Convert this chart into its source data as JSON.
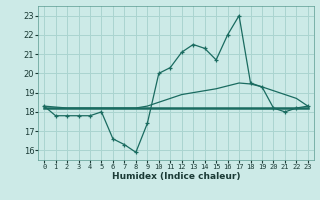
{
  "xlabel": "Humidex (Indice chaleur)",
  "background_color": "#cceae7",
  "grid_color": "#aad4d0",
  "line_color": "#1a6b60",
  "xlim": [
    -0.5,
    23.5
  ],
  "ylim": [
    15.5,
    23.5
  ],
  "yticks": [
    16,
    17,
    18,
    19,
    20,
    21,
    22,
    23
  ],
  "xtick_labels": [
    "0",
    "1",
    "2",
    "3",
    "4",
    "5",
    "6",
    "7",
    "8",
    "9",
    "10",
    "11",
    "12",
    "13",
    "14",
    "15",
    "16",
    "17",
    "18",
    "19",
    "20",
    "21",
    "22",
    "23"
  ],
  "x": [
    0,
    1,
    2,
    3,
    4,
    5,
    6,
    7,
    8,
    9,
    10,
    11,
    12,
    13,
    14,
    15,
    16,
    17,
    18,
    19,
    20,
    21,
    22,
    23
  ],
  "y_main": [
    18.3,
    17.8,
    17.8,
    17.8,
    17.8,
    18.0,
    16.6,
    16.3,
    15.9,
    17.4,
    20.0,
    20.3,
    21.1,
    21.5,
    21.3,
    20.7,
    22.0,
    23.0,
    19.5,
    19.3,
    18.2,
    18.0,
    18.2,
    18.3
  ],
  "y_smooth": [
    18.3,
    18.25,
    18.2,
    18.2,
    18.2,
    18.2,
    18.2,
    18.2,
    18.2,
    18.3,
    18.5,
    18.7,
    18.9,
    19.0,
    19.1,
    19.2,
    19.35,
    19.5,
    19.45,
    19.3,
    19.1,
    18.9,
    18.7,
    18.3
  ],
  "y_flat": [
    18.2,
    18.2,
    18.2,
    18.2,
    18.2,
    18.2,
    18.2,
    18.2,
    18.2,
    18.2,
    18.2,
    18.2,
    18.2,
    18.2,
    18.2,
    18.2,
    18.2,
    18.2,
    18.2,
    18.2,
    18.2,
    18.2,
    18.2,
    18.2
  ]
}
